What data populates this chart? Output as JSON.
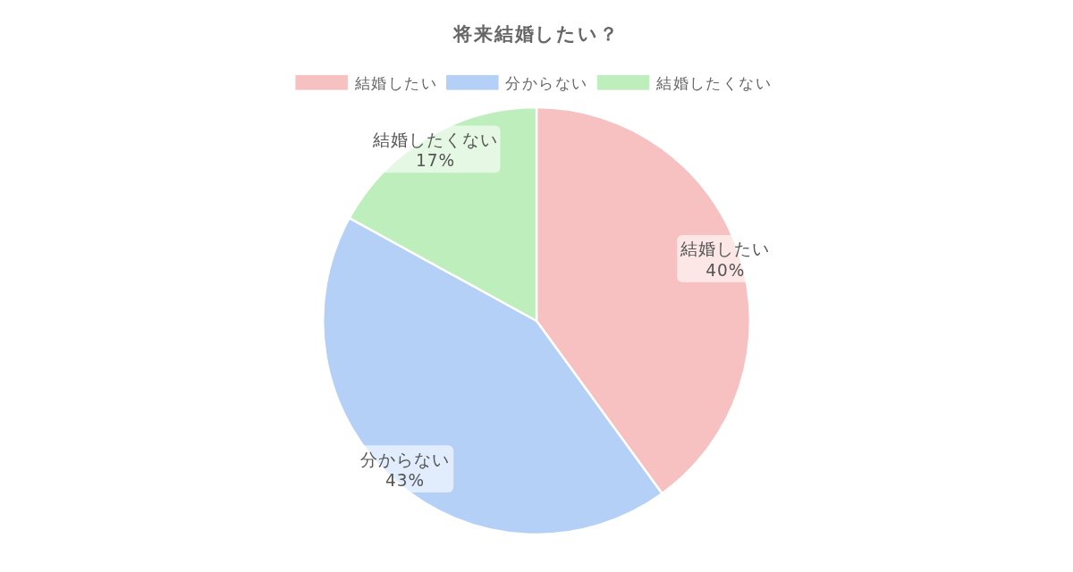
{
  "chart_data": {
    "type": "pie",
    "title": "将来結婚したい？",
    "categories": [
      "結婚したい",
      "分からない",
      "結婚したくない"
    ],
    "values": [
      40,
      43,
      17
    ],
    "colors": [
      "#f7c1c1",
      "#b5d0f7",
      "#bdeebb"
    ],
    "value_labels": [
      "40%",
      "43%",
      "17%"
    ],
    "legend": "top"
  }
}
